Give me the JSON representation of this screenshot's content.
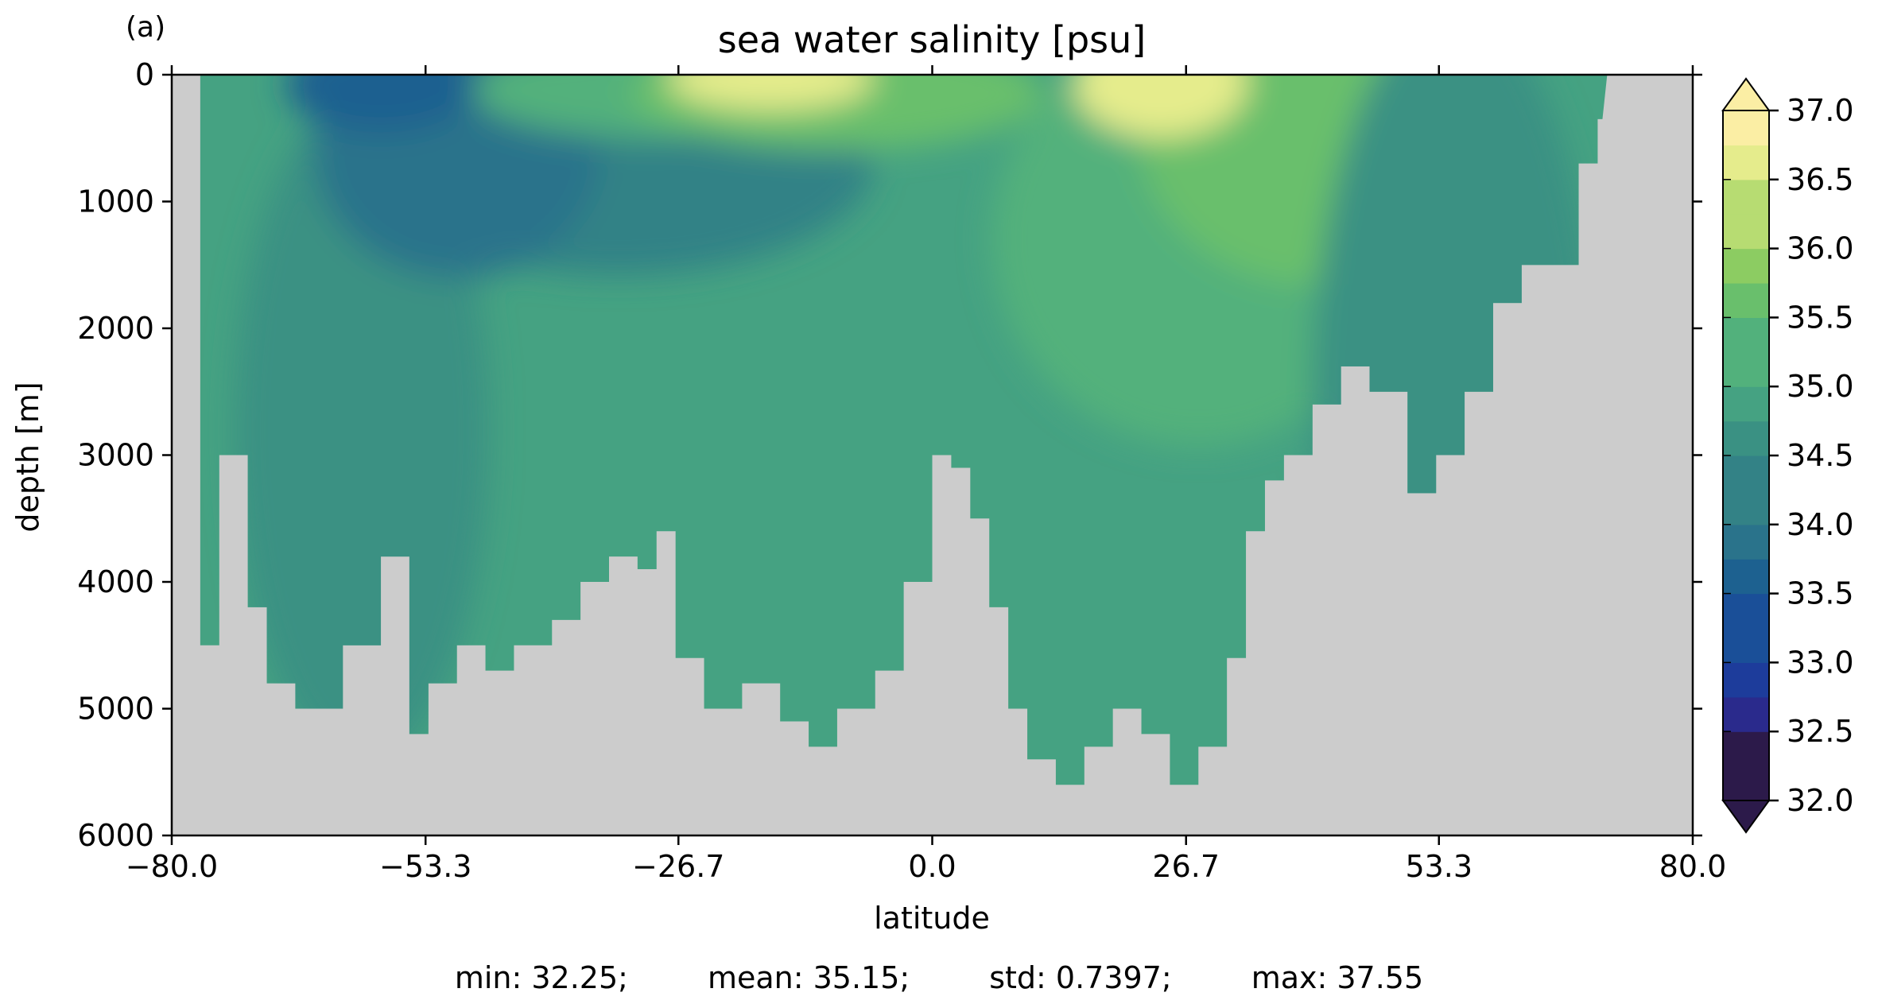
{
  "chart_data": {
    "type": "heatmap",
    "panel_label": "(a)",
    "title": "sea water salinity [psu]",
    "xlabel": "latitude",
    "ylabel": "depth [m]",
    "xlim": [
      -80.0,
      80.0
    ],
    "ylim": [
      6000,
      0
    ],
    "y_inverted": true,
    "x_ticks": [
      "−80.0",
      "−53.3",
      "−26.7",
      "0.0",
      "26.7",
      "53.3",
      "80.0"
    ],
    "x_tick_values": [
      -80.0,
      -53.3,
      -26.7,
      0.0,
      26.7,
      53.3,
      80.0
    ],
    "y_ticks": [
      "0",
      "1000",
      "2000",
      "3000",
      "4000",
      "5000",
      "6000"
    ],
    "y_tick_values": [
      0,
      1000,
      2000,
      3000,
      4000,
      5000,
      6000
    ],
    "colorbar": {
      "min": 32.0,
      "max": 37.0,
      "step": 0.25,
      "extend": "both",
      "ticks": [
        "32.0",
        "32.5",
        "33.0",
        "33.5",
        "34.0",
        "34.5",
        "35.0",
        "35.5",
        "36.0",
        "36.5",
        "37.0"
      ],
      "tick_values": [
        32.0,
        32.5,
        33.0,
        33.5,
        34.0,
        34.5,
        35.0,
        35.5,
        36.0,
        36.5,
        37.0
      ],
      "colormap": [
        "#2c1a4a",
        "#2a2a8c",
        "#1d3c9b",
        "#1a4f98",
        "#1d6190",
        "#2a738b",
        "#338286",
        "#3a9183",
        "#45a282",
        "#52b17c",
        "#69bf6c",
        "#8ccc62",
        "#b7dc72",
        "#e5ec8c",
        "#fbeea4"
      ]
    },
    "land_color": "#cccccc",
    "bottom_depth_profile": {
      "lat": [
        -77,
        -75,
        -72,
        -70,
        -67,
        -62,
        -58,
        -55,
        -53,
        -50,
        -47,
        -44,
        -40,
        -37,
        -34,
        -31,
        -29,
        -27,
        -24,
        -20,
        -16,
        -13,
        -10,
        -6,
        -3,
        0,
        2,
        4,
        6,
        8,
        10,
        13,
        16,
        19,
        22,
        25,
        28,
        31,
        33,
        35,
        37,
        40,
        43,
        46,
        50,
        53,
        56,
        59,
        62,
        65,
        68,
        70
      ],
      "depth": [
        4500,
        3000,
        4200,
        4800,
        5000,
        4500,
        3800,
        5200,
        4800,
        4500,
        4700,
        4500,
        4300,
        4000,
        3800,
        3900,
        3600,
        4600,
        5000,
        4800,
        5100,
        5300,
        5000,
        4700,
        4000,
        3000,
        3100,
        3500,
        4200,
        5000,
        5400,
        5600,
        5300,
        5000,
        5200,
        5600,
        5300,
        4600,
        3600,
        3200,
        3000,
        2600,
        2300,
        2500,
        3300,
        3000,
        2500,
        1800,
        1500,
        1500,
        700,
        350
      ]
    },
    "stats": {
      "min": "min: 32.25;",
      "mean": "mean: 35.15;",
      "std": "std: 0.7397;",
      "max": "max: 37.55"
    }
  }
}
